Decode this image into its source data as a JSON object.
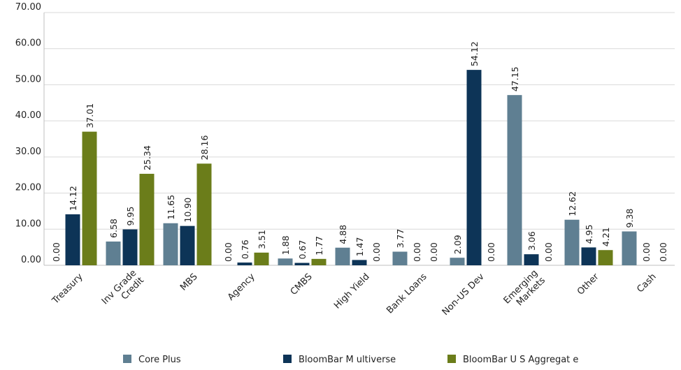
{
  "chart_data": {
    "type": "bar",
    "ylim": [
      0,
      70
    ],
    "yticks": [
      "0.00",
      "10.00",
      "20.00",
      "30.00",
      "40.00",
      "50.00",
      "60.00",
      "70.00"
    ],
    "grid": true,
    "legend_position": "bottom",
    "categories": [
      [
        "Treasury"
      ],
      [
        "Inv Grade",
        "Credit"
      ],
      [
        "MBS"
      ],
      [
        "Agency"
      ],
      [
        "CMBS"
      ],
      [
        "High Yield"
      ],
      [
        "Bank Loans"
      ],
      [
        "Non-US Dev"
      ],
      [
        "Emerging",
        "Markets"
      ],
      [
        "Other"
      ],
      [
        "Cash"
      ]
    ],
    "series": [
      {
        "name": "Core Plus",
        "color": "#5f7f92",
        "values": [
          0.0,
          6.58,
          11.65,
          0.0,
          1.88,
          4.88,
          3.77,
          2.09,
          47.15,
          12.62,
          9.38
        ],
        "labels": [
          "0.00",
          "6.58",
          "11.65",
          "0.00",
          "1.88",
          "4.88",
          "3.77",
          "2.09",
          "47.15",
          "12.62",
          "9.38"
        ]
      },
      {
        "name": "BloomBar M ultiverse",
        "color": "#0d3457",
        "values": [
          14.12,
          9.95,
          10.9,
          0.76,
          0.67,
          1.47,
          0.0,
          54.12,
          3.06,
          4.95,
          0.0
        ],
        "labels": [
          "14.12",
          "9.95",
          "10.90",
          "0.76",
          "0.67",
          "1.47",
          "0.00",
          "54.12",
          "3.06",
          "4.95",
          "0.00"
        ]
      },
      {
        "name": "BloomBar U S Aggregat e",
        "color": "#6b7d1a",
        "values": [
          37.01,
          25.34,
          28.16,
          3.51,
          1.77,
          0.0,
          0.0,
          0.0,
          0.0,
          4.21,
          0.0
        ],
        "labels": [
          "37.01",
          "25.34",
          "28.16",
          "3.51",
          "1.77",
          "0.00",
          "0.00",
          "0.00",
          "0.00",
          "4.21",
          "0.00"
        ]
      }
    ]
  }
}
